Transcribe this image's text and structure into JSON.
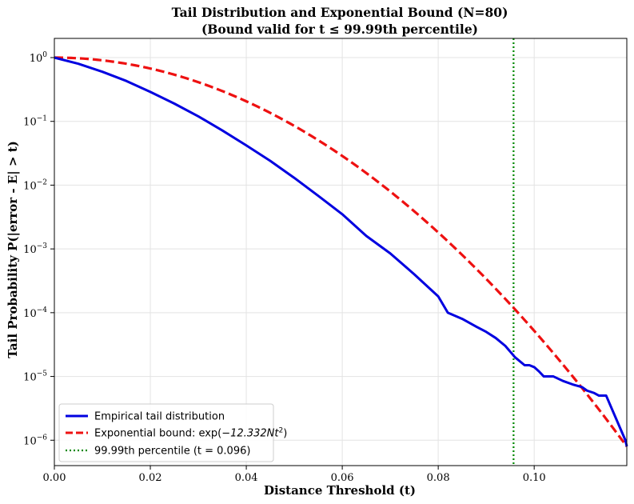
{
  "chart_data": {
    "type": "line",
    "title": "Tail Distribution and Exponential Bound (N=80)",
    "subtitle": "(Bound valid for t ≤ 99.99th percentile)",
    "xlabel": "Distance Threshold (t)",
    "ylabel": "Tail Probability P(|error - E| > t)",
    "y_scale": "log",
    "xlim": [
      0.0,
      0.1193
    ],
    "ylim": [
      4e-07,
      2.0
    ],
    "grid": true,
    "x_ticks": [
      {
        "value": 0.0,
        "label": "0.00"
      },
      {
        "value": 0.02,
        "label": "0.02"
      },
      {
        "value": 0.04,
        "label": "0.04"
      },
      {
        "value": 0.06,
        "label": "0.06"
      },
      {
        "value": 0.08,
        "label": "0.08"
      },
      {
        "value": 0.1,
        "label": "0.10"
      }
    ],
    "y_ticks": [
      {
        "value": 1,
        "base": "10",
        "exp": "0"
      },
      {
        "value": 0.1,
        "base": "10",
        "exp": "−1"
      },
      {
        "value": 0.01,
        "base": "10",
        "exp": "−2"
      },
      {
        "value": 0.001,
        "base": "10",
        "exp": "−3"
      },
      {
        "value": 0.0001,
        "base": "10",
        "exp": "−4"
      },
      {
        "value": 1e-05,
        "base": "10",
        "exp": "−5"
      },
      {
        "value": 1e-06,
        "base": "10",
        "exp": "−6"
      }
    ],
    "legend_position": "lower-left",
    "series": [
      {
        "name": "Empirical tail distribution",
        "style": "solid",
        "color": "#0000e0",
        "x": [
          0.0,
          0.005,
          0.01,
          0.015,
          0.02,
          0.025,
          0.03,
          0.035,
          0.04,
          0.045,
          0.05,
          0.055,
          0.06,
          0.065,
          0.07,
          0.075,
          0.08,
          0.082,
          0.085,
          0.088,
          0.09,
          0.092,
          0.094,
          0.096,
          0.098,
          0.099,
          0.1,
          0.101,
          0.102,
          0.104,
          0.106,
          0.108,
          0.11,
          0.111,
          0.1125,
          0.1135,
          0.115,
          0.119,
          0.1193
        ],
        "y": [
          1.0,
          0.8,
          0.6,
          0.43,
          0.29,
          0.19,
          0.12,
          0.072,
          0.042,
          0.024,
          0.013,
          0.0068,
          0.0035,
          0.0016,
          0.00085,
          0.0004,
          0.00018,
          0.0001,
          8e-05,
          6e-05,
          5e-05,
          4e-05,
          3e-05,
          2e-05,
          1.5e-05,
          1.5e-05,
          1.4e-05,
          1.2e-05,
          1e-05,
          1e-05,
          8.5e-06,
          7.5e-06,
          6.8e-06,
          6e-06,
          5.5e-06,
          5e-06,
          5e-06,
          1e-06,
          8e-07
        ]
      },
      {
        "name": "Exponential bound: exp(−12.332Nt²)",
        "label_prefix": "Exponential bound: exp(",
        "label_math": "−12.332Nt",
        "label_sup": "2",
        "label_suffix": ")",
        "style": "dashed",
        "color": "#ee1111",
        "formula": {
          "coef": 12.332,
          "N": 80
        }
      },
      {
        "name": "99.99th percentile (t = 0.096)",
        "style": "dotted",
        "color": "#008800",
        "vline_x": 0.0957
      }
    ]
  }
}
